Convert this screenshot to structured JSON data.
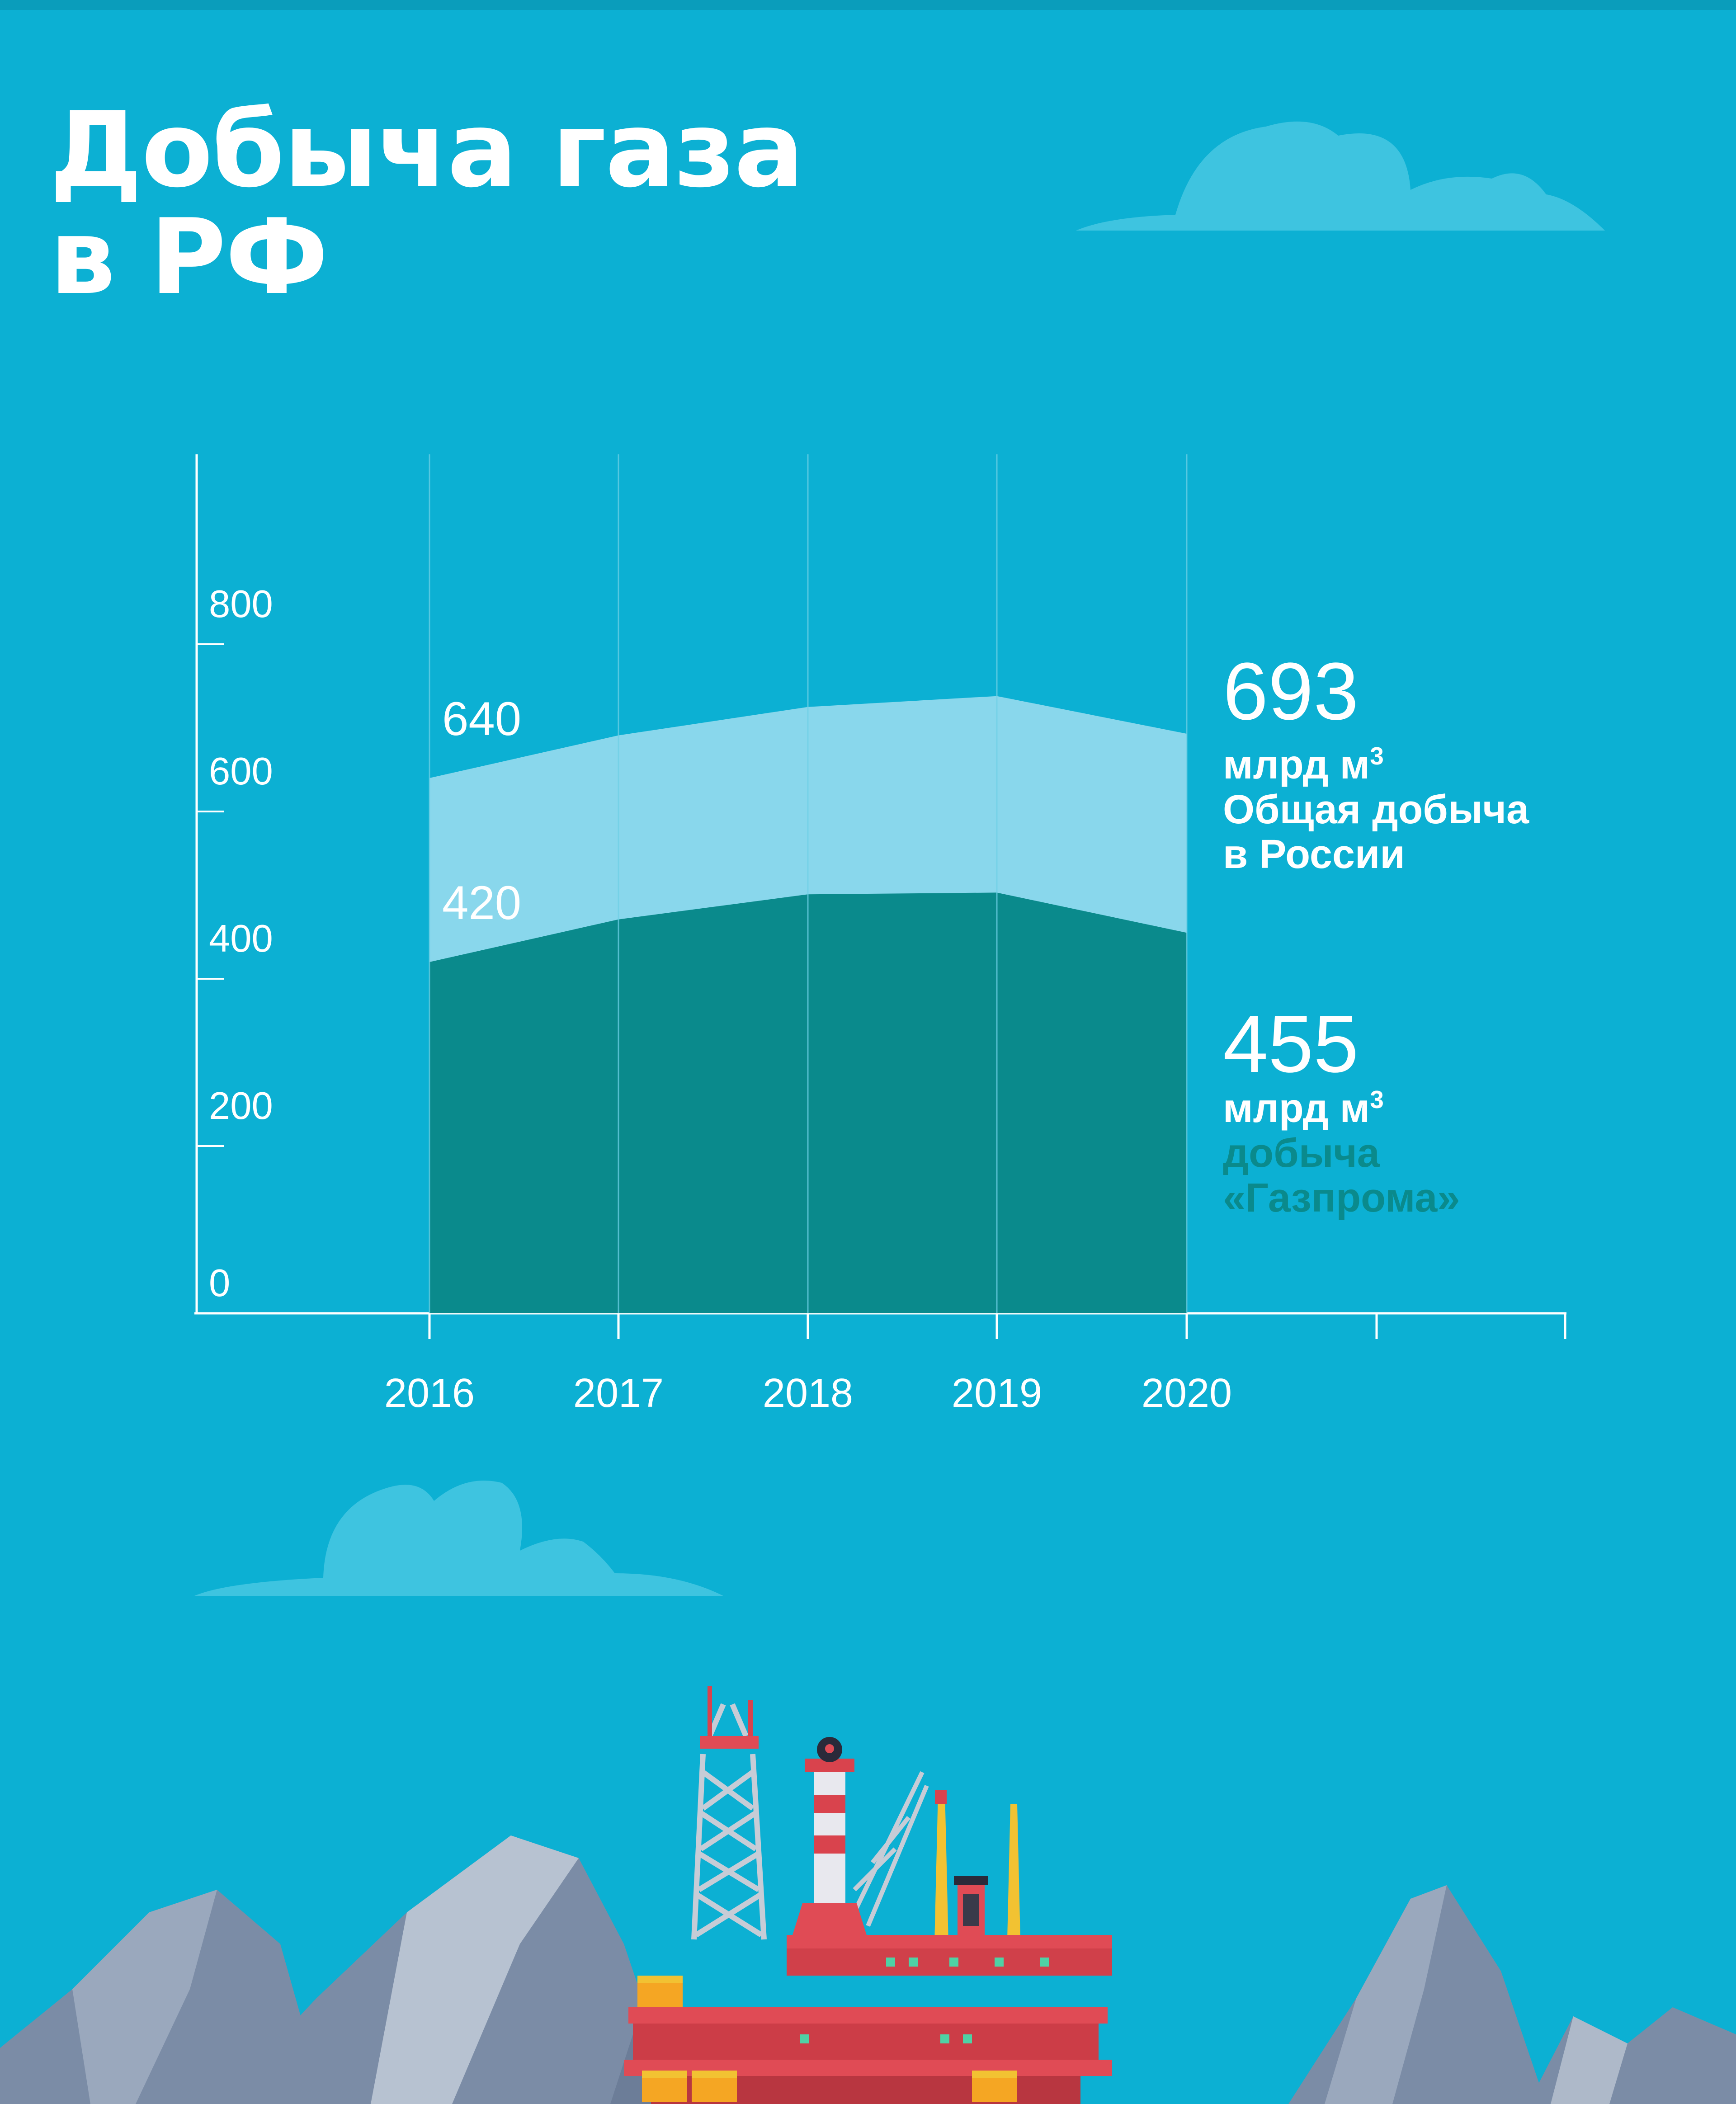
{
  "title": {
    "line1": "Добыча газа",
    "line2": "в РФ"
  },
  "colors": {
    "background": "#0cb0d3",
    "total_area": "#89d7ec",
    "gazprom_area": "#0a8a8c",
    "text": "#ffffff",
    "grid": "#6fd0e6",
    "cloud": "#3ec4e0"
  },
  "annotations": {
    "total": {
      "value": "693",
      "unit": "млрд м",
      "unit_sup": "3",
      "desc1": "Общая добыча",
      "desc2": "в России",
      "color": "#ffffff"
    },
    "gazprom": {
      "value": "455",
      "unit": "млрд м",
      "unit_sup": "3",
      "desc1": "добыча",
      "desc2": "«Газпрома»",
      "color": "#0a8a8c"
    }
  },
  "illustration": [
    "offshore-platform",
    "rocky-mountains",
    "clouds"
  ],
  "chart_data": {
    "type": "area",
    "title": "Добыча газа в РФ",
    "x": [
      "2016",
      "2017",
      "2018",
      "2019",
      "2020"
    ],
    "xlabel": "",
    "ylabel": "",
    "ylim": [
      0,
      800
    ],
    "y_ticks": [
      "0",
      "200",
      "400",
      "600",
      "800"
    ],
    "grid": true,
    "series": [
      {
        "name": "Общая добыча в России",
        "values": [
          640,
          691,
          725,
          738,
          693
        ],
        "color": "#89d7ec"
      },
      {
        "name": "добыча «Газпрома»",
        "values": [
          420,
          471,
          501,
          503,
          455
        ],
        "color": "#0a8a8c"
      }
    ],
    "data_labels": [
      {
        "series": 0,
        "index": 0,
        "text": "640"
      },
      {
        "series": 1,
        "index": 0,
        "text": "420"
      }
    ]
  }
}
